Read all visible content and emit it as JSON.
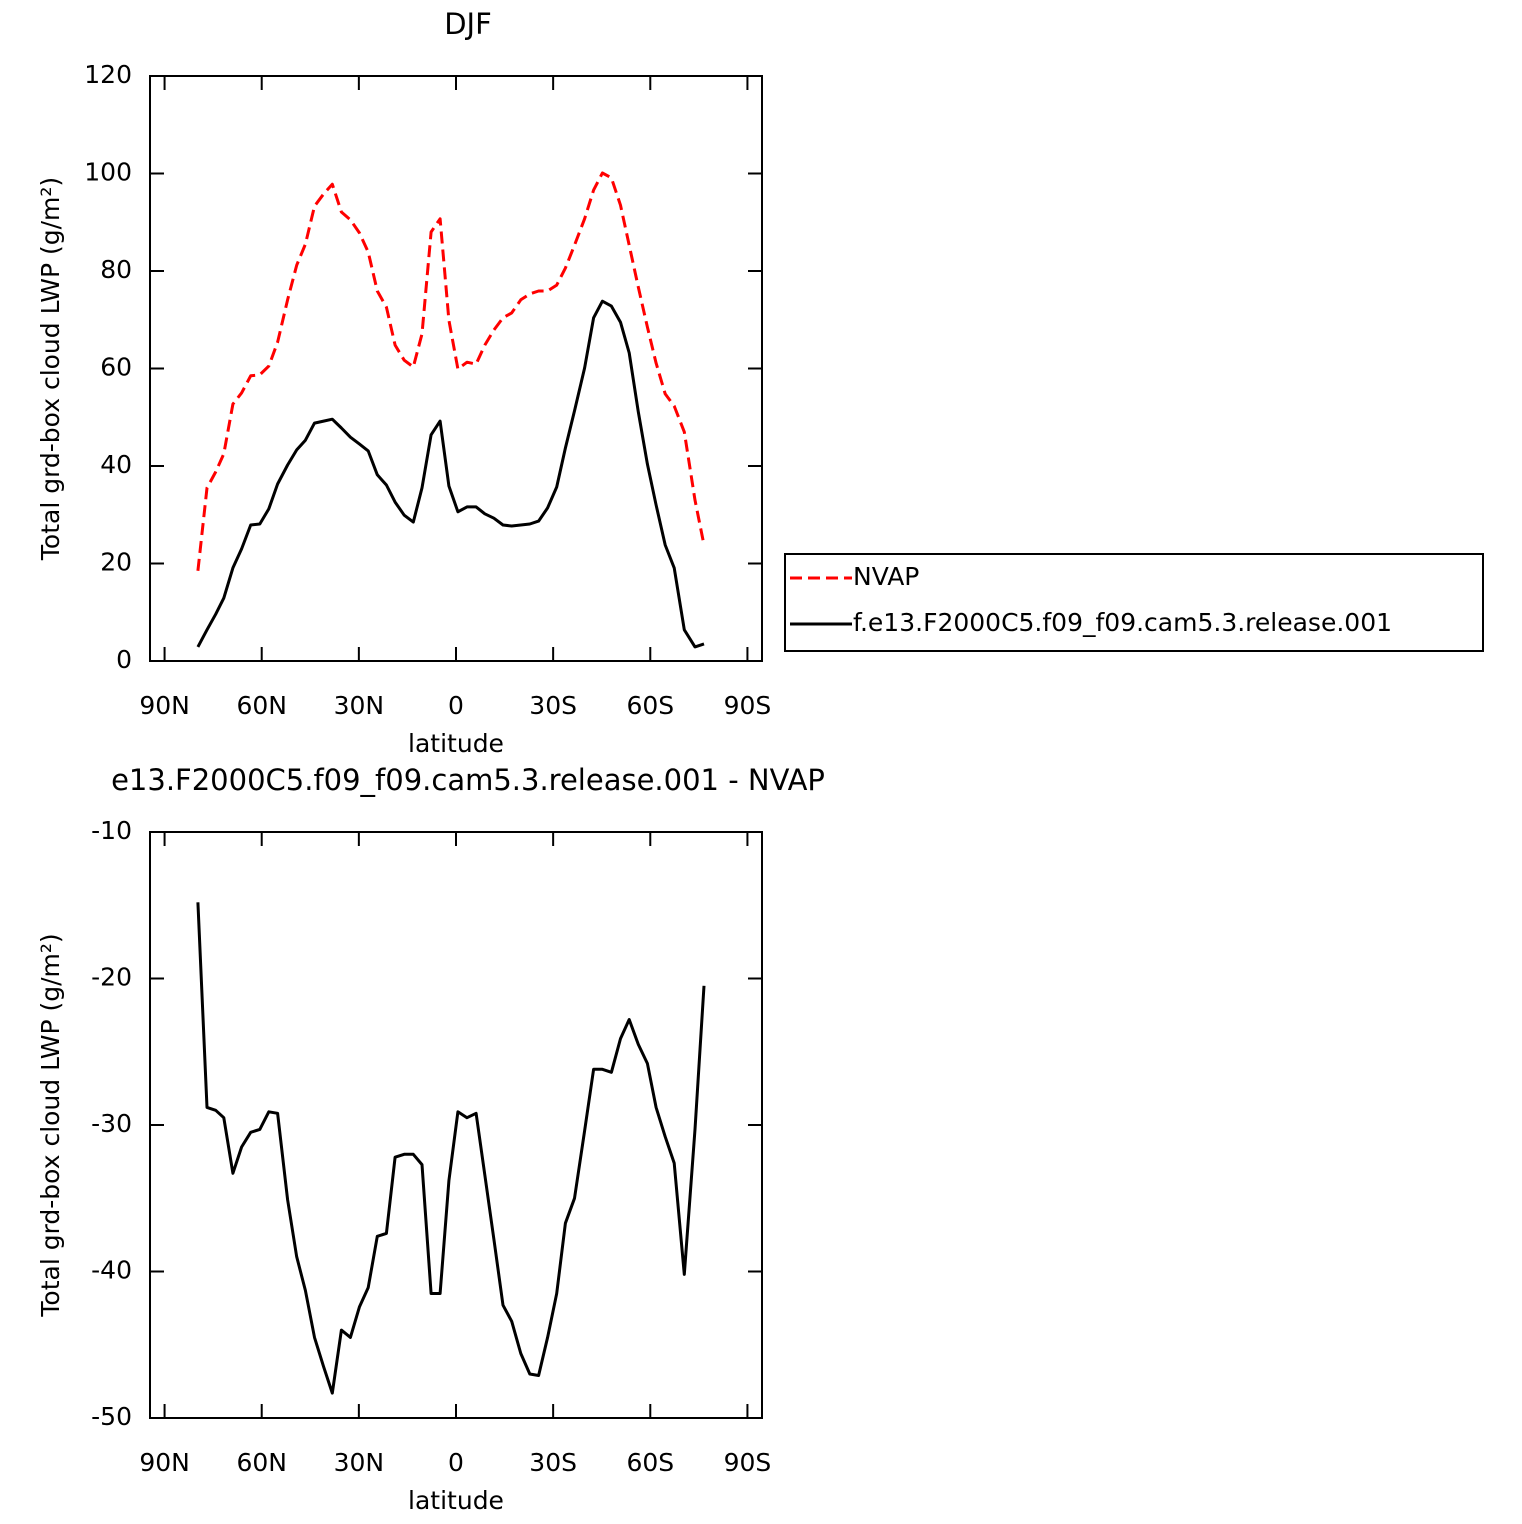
{
  "chart_data": [
    {
      "type": "line",
      "title": "DJF",
      "x": [
        79.7,
        76.9,
        74.2,
        71.7,
        68.9,
        66.2,
        63.4,
        60.6,
        57.8,
        55.1,
        52.0,
        49.2,
        46.5,
        43.7,
        40.9,
        38.2,
        35.4,
        32.6,
        29.8,
        27.1,
        24.3,
        21.5,
        18.8,
        16.0,
        13.2,
        10.5,
        7.7,
        4.9,
        2.2,
        -0.6,
        -3.4,
        -6.2,
        -8.9,
        -11.7,
        -14.5,
        -17.2,
        -20.0,
        -22.8,
        -25.5,
        -28.3,
        -31.1,
        -33.8,
        -36.6,
        -39.7,
        -42.5,
        -45.2,
        -48.0,
        -50.8,
        -53.5,
        -56.3,
        -59.1,
        -61.8,
        -64.6,
        -67.4,
        -70.5,
        -73.8,
        -76.6
      ],
      "series": [
        {
          "name": "NVAP",
          "color": "#ff0000",
          "dashed": true,
          "values": [
            18.5,
            35.5,
            38.8,
            42.5,
            52.7,
            55.0,
            58.5,
            58.7,
            60.5,
            65.4,
            74.1,
            81.2,
            85.5,
            93.3,
            95.8,
            97.8,
            92.1,
            90.5,
            87.8,
            83.9,
            75.9,
            72.6,
            64.8,
            61.7,
            60.3,
            67.1,
            88.0,
            90.7,
            69.9,
            59.9,
            61.3,
            60.9,
            64.8,
            67.9,
            70.4,
            71.4,
            74.1,
            75.3,
            75.9,
            75.9,
            77.1,
            80.6,
            85.3,
            90.7,
            96.6,
            100.1,
            99.1,
            93.5,
            85.3,
            76.7,
            68.5,
            61.1,
            54.8,
            52.3,
            47.0,
            33.0,
            23.8
          ]
        },
        {
          "name": "f.e13.F2000C5.f09_f09.cam5.3.release.001",
          "color": "#000000",
          "dashed": false,
          "values": [
            2.9,
            6.4,
            9.6,
            12.9,
            19.1,
            23.0,
            27.9,
            28.1,
            31.2,
            36.3,
            40.2,
            43.3,
            45.3,
            48.8,
            49.2,
            49.6,
            47.8,
            45.9,
            44.5,
            43.1,
            38.2,
            36.1,
            32.6,
            29.9,
            28.5,
            35.5,
            46.4,
            49.2,
            35.9,
            30.6,
            31.6,
            31.6,
            30.2,
            29.3,
            27.9,
            27.7,
            27.9,
            28.1,
            28.7,
            31.4,
            35.7,
            43.7,
            51.3,
            60.1,
            70.4,
            73.8,
            72.8,
            69.5,
            63.2,
            51.1,
            40.4,
            32.0,
            23.8,
            19.1,
            6.4,
            2.9,
            3.5
          ]
        }
      ],
      "xlim": [
        94.5,
        -94.5
      ],
      "xticks": [
        {
          "value": 90,
          "label": "90N"
        },
        {
          "value": 60,
          "label": "60N"
        },
        {
          "value": 30,
          "label": "30N"
        },
        0,
        {
          "value": -30,
          "label": "30S"
        },
        {
          "value": -60,
          "label": "60S"
        },
        {
          "value": -90,
          "label": "90S"
        }
      ],
      "ylim": [
        0,
        120
      ],
      "yticks": [
        0,
        20,
        40,
        60,
        80,
        100,
        120
      ],
      "xlabel": "latitude",
      "ylabel": "Total grd-box cloud LWP (g/m²)",
      "legend": "right"
    },
    {
      "type": "line",
      "title": "e13.F2000C5.f09_f09.cam5.3.release.001 - NVAP",
      "x": [
        79.7,
        76.9,
        74.2,
        71.7,
        68.9,
        66.2,
        63.4,
        60.6,
        57.8,
        55.1,
        52.0,
        49.2,
        46.5,
        43.7,
        40.9,
        38.2,
        35.4,
        32.6,
        29.8,
        27.1,
        24.3,
        21.5,
        18.8,
        16.0,
        13.2,
        10.5,
        7.7,
        4.9,
        2.2,
        -0.6,
        -3.4,
        -6.2,
        -8.9,
        -11.7,
        -14.5,
        -17.2,
        -20.0,
        -22.8,
        -25.5,
        -28.3,
        -31.1,
        -33.8,
        -36.6,
        -39.7,
        -42.5,
        -45.2,
        -48.0,
        -50.8,
        -53.5,
        -56.3,
        -59.1,
        -61.8,
        -64.6,
        -67.4,
        -70.5,
        -73.8,
        -76.6
      ],
      "series": [
        {
          "color": "#000000",
          "dashed": false,
          "values": [
            -14.8,
            -28.8,
            -29.0,
            -29.5,
            -33.3,
            -31.5,
            -30.5,
            -30.3,
            -29.1,
            -29.2,
            -35.1,
            -39.0,
            -41.3,
            -44.5,
            -46.5,
            -48.3,
            -44.0,
            -44.5,
            -42.4,
            -41.1,
            -37.6,
            -37.4,
            -32.2,
            -32.0,
            -32.0,
            -32.7,
            -41.5,
            -41.5,
            -33.8,
            -29.1,
            -29.5,
            -29.2,
            -33.4,
            -37.8,
            -42.3,
            -43.4,
            -45.6,
            -47.0,
            -47.1,
            -44.5,
            -41.5,
            -36.7,
            -35.0,
            -30.4,
            -26.2,
            -26.2,
            -26.4,
            -24.1,
            -22.8,
            -24.5,
            -25.8,
            -28.8,
            -30.8,
            -32.6,
            -40.2,
            -30.3,
            -20.5
          ]
        }
      ],
      "xlim": [
        94.5,
        -94.5
      ],
      "xticks": [
        {
          "value": 90,
          "label": "90N"
        },
        {
          "value": 60,
          "label": "60N"
        },
        {
          "value": 30,
          "label": "30N"
        },
        0,
        {
          "value": -30,
          "label": "30S"
        },
        {
          "value": -60,
          "label": "60S"
        },
        {
          "value": -90,
          "label": "90S"
        }
      ],
      "ylim": [
        -50,
        -10
      ],
      "yticks": [
        -50,
        -40,
        -30,
        -20,
        -10
      ],
      "xlabel": "latitude",
      "ylabel": "Total grd-box cloud LWP (g/m²)"
    }
  ]
}
